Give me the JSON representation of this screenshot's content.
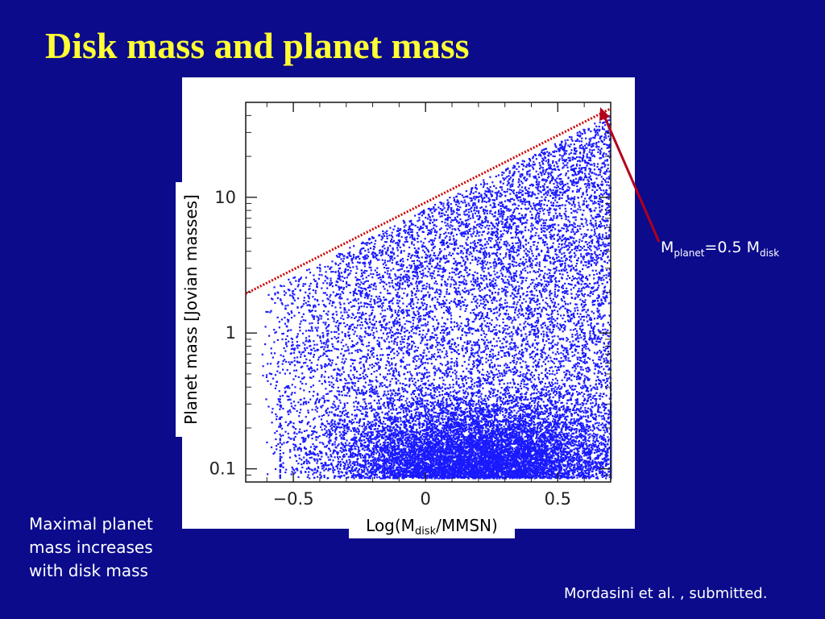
{
  "slide": {
    "title": "Disk mass and planet mass",
    "caption_lines": [
      "Maximal planet",
      "mass increases",
      "with disk mass"
    ],
    "citation": "Mordasini et al. , submitted."
  },
  "annotation": {
    "symbol": "M",
    "sub1": "planet",
    "middle": "=0.5 M",
    "sub2": "disk",
    "arrow_color": "#b3001b"
  },
  "colors": {
    "background": "#0b0b8c",
    "title": "#ffff33",
    "points": "#1a1aff",
    "limit_line": "#cc0000"
  },
  "chart_data": {
    "type": "scatter",
    "xlabel_parts": {
      "prefix": "Log(M",
      "sub": "disk",
      "suffix": "/MMSN)"
    },
    "ylabel": "Planet mass [Jovian masses]",
    "xlim": [
      -0.68,
      0.7
    ],
    "ylim": [
      0.08,
      50
    ],
    "yscale": "log",
    "x_ticks": [
      {
        "value": -0.5,
        "label": "−0.5"
      },
      {
        "value": 0,
        "label": "0"
      },
      {
        "value": 0.5,
        "label": "0.5"
      }
    ],
    "y_ticks": [
      {
        "value": 0.1,
        "label": "0.1"
      },
      {
        "value": 1,
        "label": "1"
      },
      {
        "value": 10,
        "label": "10"
      }
    ],
    "limit_line": {
      "name": "M_planet = 0.5 M_disk",
      "x": [
        -0.68,
        0.7
      ],
      "y": [
        1.95,
        45
      ]
    },
    "series": [
      {
        "kind": "scatter-density",
        "approx_envelope": {
          "x": [
            -0.68,
            -0.5,
            -0.25,
            0,
            0.25,
            0.5,
            0.7
          ],
          "y_max": [
            1.4,
            2.6,
            4.5,
            9,
            17,
            30,
            45
          ]
        },
        "dense_band": {
          "x_range": [
            -0.5,
            0.7
          ],
          "y_range": [
            0.08,
            0.2
          ]
        }
      }
    ]
  }
}
